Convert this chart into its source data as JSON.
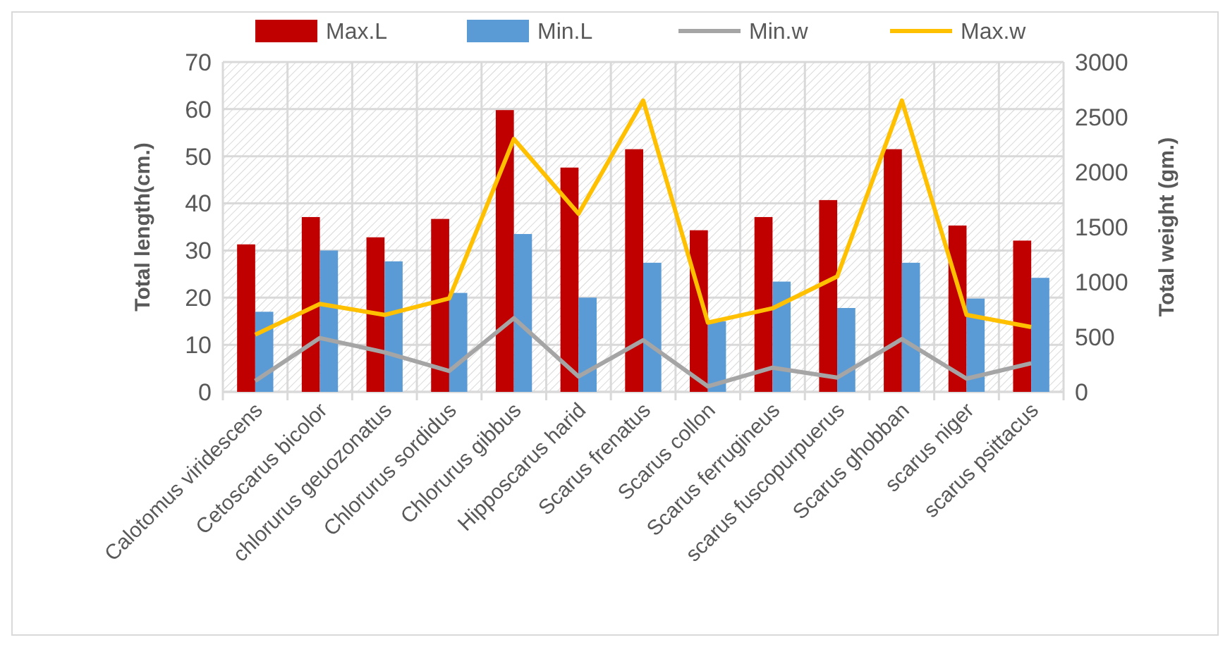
{
  "chart_data": {
    "type": "bar",
    "categories": [
      "Calotomus viridescens",
      "Cetoscarus bicolor",
      "chlorurus geuozonatus",
      "Chlorurus sordidus",
      "Chlorurus gibbus",
      "Hipposcarus harid",
      "Scarus frenatus",
      "Scarus collon",
      "Scarus ferrugineus",
      "scarus fuscopurpuerus",
      "Scarus ghobban",
      "scarus niger",
      "scarus psittacus"
    ],
    "series": [
      {
        "name": "Max.L",
        "color": "#c00000",
        "values": [
          31.3,
          37.1,
          32.8,
          36.7,
          59.8,
          47.6,
          51.5,
          34.3,
          37.1,
          40.7,
          51.5,
          35.3,
          32.1
        ]
      },
      {
        "name": "Min.L",
        "color": "#5b9bd5",
        "values": [
          17,
          30,
          27.7,
          21,
          33.5,
          20,
          27.4,
          15,
          23.4,
          17.8,
          27.4,
          19.8,
          24.2
        ]
      },
      {
        "name": "Min.w",
        "type": "line",
        "axis": "y2",
        "color": "#a5a5a5",
        "values": [
          100,
          490,
          360,
          190,
          670,
          140,
          470,
          50,
          220,
          130,
          480,
          120,
          260
        ]
      },
      {
        "name": "Max.w",
        "type": "line",
        "axis": "y2",
        "color": "#ffc000",
        "values": [
          520,
          800,
          700,
          850,
          2300,
          1620,
          2650,
          630,
          760,
          1050,
          2650,
          700,
          590
        ]
      }
    ],
    "ylabel": "Total length(cm.)",
    "y2label": "Total weight (gm.)",
    "ylim": [
      0,
      70
    ],
    "yticks": [
      0,
      10,
      20,
      30,
      40,
      50,
      60,
      70
    ],
    "y2lim": [
      0,
      3000
    ],
    "y2ticks": [
      0,
      500,
      1000,
      1500,
      2000,
      2500,
      3000
    ],
    "grid": true,
    "legend": "top",
    "marker": "none",
    "line_style": "solid"
  }
}
